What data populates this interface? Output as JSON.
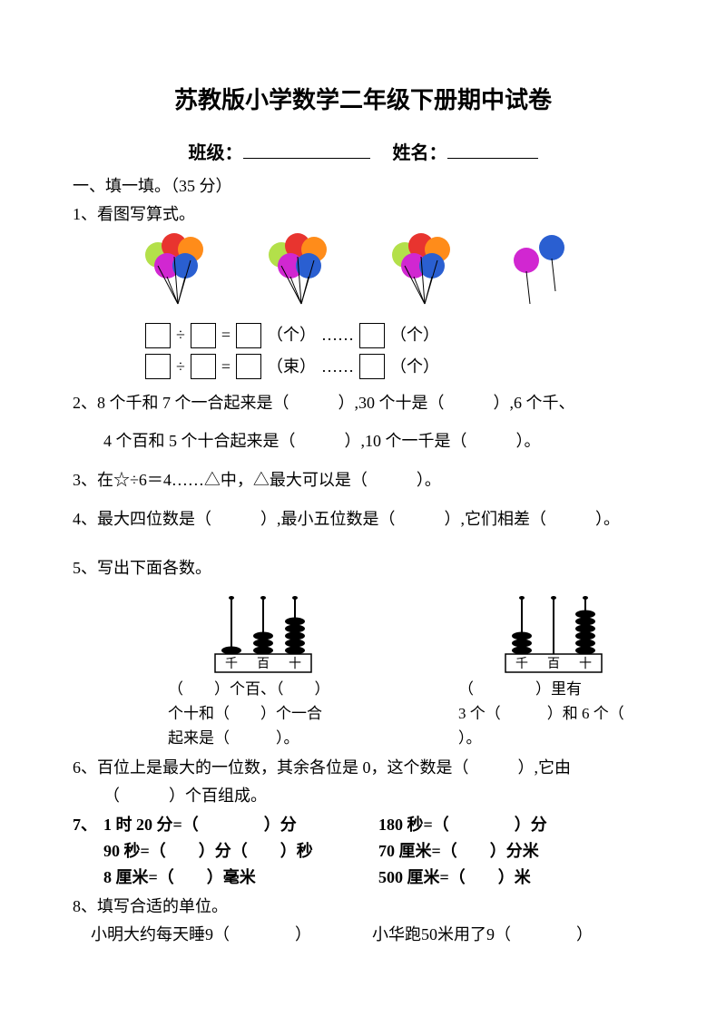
{
  "title": "苏教版小学数学二年级下册期中试卷",
  "info": {
    "class_label": "班级：",
    "name_label": "姓名："
  },
  "section1": {
    "head": "一、填一填。（35 分）"
  },
  "q1": {
    "label": "1、看图写算式。",
    "eq1": {
      "op": "÷",
      "eq": "=",
      "unit1": "（个）",
      "dots": "……",
      "unit2": "（个）"
    },
    "eq2": {
      "op": "÷",
      "eq": "=",
      "unit1": "（束）",
      "dots": "……",
      "unit2": "（个）"
    }
  },
  "q2": {
    "l1": "2、8 个千和 7 个一合起来是（　　　）,30 个十是（　　　）,6 个千、",
    "l2": "4 个百和 5 个十合起来是（　　　）,10 个一千是（　　　）。"
  },
  "q3": "3、在☆÷6＝4……△中，△最大可以是（　　　）。",
  "q4": "4、最大四位数是（　　　）,最小五位数是（　　　）,它们相差（　　　）。",
  "q5": {
    "label": "5、写出下面各数。",
    "left": {
      "labels": [
        "千",
        "百",
        "十"
      ],
      "t1": "（　　）个百、（　　）",
      "t2": "个十和（　　）个一合",
      "t3": "起来是（　　　）。"
    },
    "right": {
      "labels": [
        "千",
        "百",
        "十"
      ],
      "t1": "（　　　　）里有",
      "t2": "3 个（　　　）和 6 个（",
      "t3": "）。"
    }
  },
  "q6": {
    "l1": "6、百位上是最大的一位数，其余各位是 0，这个数是（　　　）,它由",
    "l2": "（　　　）个百组成。"
  },
  "q7": {
    "num": "7、",
    "left": [
      "1 时 20 分=（　　　　）分",
      "90 秒=（　　）分（　　）秒",
      "8 厘米=（　　）毫米"
    ],
    "right": [
      "180 秒=（　　　　）分",
      "70 厘米=（　　）分米",
      "500 厘米=（　　）米"
    ]
  },
  "q8": {
    "label": "8、填写合适的单位。",
    "l": "小明大约每天睡9（　　　　）",
    "r": "小华跑50米用了9（　　　　）"
  },
  "balloons": {
    "bunch_colors": [
      "#b3e04a",
      "#e8342f",
      "#ff8c1a",
      "#d127d1",
      "#2a5fd1"
    ],
    "pair_colors": [
      "#d127d1",
      "#2a5fd1"
    ],
    "stem": "#000000"
  },
  "abacus": {
    "frame": "#000000",
    "rod": "#000000",
    "bead": "#000000",
    "left_beads": [
      1,
      3,
      5
    ],
    "right_beads": [
      3,
      0,
      6
    ]
  }
}
